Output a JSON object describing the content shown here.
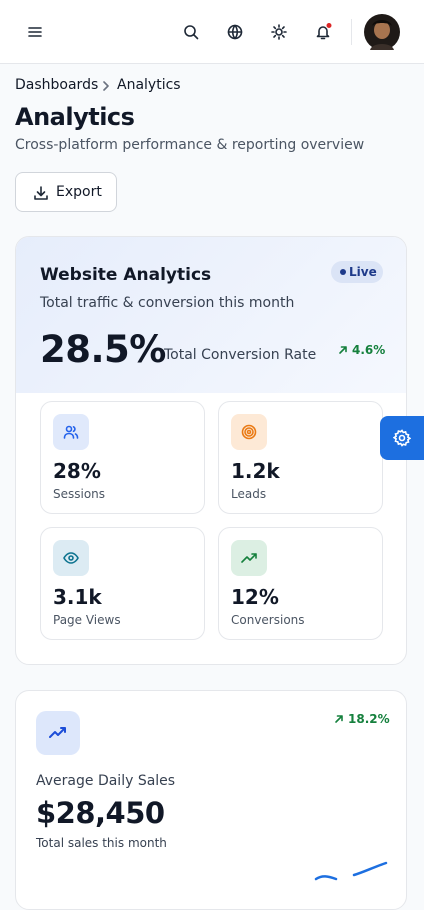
{
  "breadcrumb": {
    "parent": "Dashboards",
    "current": "Analytics"
  },
  "header": {
    "title": "Analytics",
    "subtitle": "Cross-platform performance & reporting overview"
  },
  "export_button": "Export",
  "website_card": {
    "title": "Website Analytics",
    "badge": "Live",
    "subtitle": "Total traffic & conversion this month",
    "metric": "28.5%",
    "metric_label": "Total Conversion Rate",
    "change": "4.6%",
    "stats": [
      {
        "value": "28%",
        "label": "Sessions"
      },
      {
        "value": "1.2k",
        "label": "Leads"
      },
      {
        "value": "3.1k",
        "label": "Page Views"
      },
      {
        "value": "12%",
        "label": "Conversions"
      }
    ]
  },
  "sales_card": {
    "change": "18.2%",
    "title": "Average Daily Sales",
    "value": "$28,450",
    "subtitle": "Total sales this month"
  }
}
